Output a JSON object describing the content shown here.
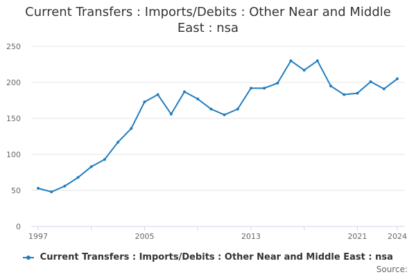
{
  "title_line1": "Current Transfers : Imports/Debits : Other Near and Middle",
  "title_line2": "East : nsa",
  "source_label": "Source:",
  "colors": {
    "series": "#1f7cbf",
    "grid": "#e6e6e6",
    "axis": "#ccd6eb",
    "text": "#333333",
    "tick_text": "#666666"
  },
  "chart_data": {
    "type": "line",
    "title": "Current Transfers : Imports/Debits : Other Near and Middle East : nsa",
    "xlabel": "",
    "ylabel": "",
    "xlim": [
      1997,
      2024
    ],
    "ylim": [
      0,
      250
    ],
    "y_ticks": [
      0,
      50,
      100,
      150,
      200,
      250
    ],
    "x_ticks": [
      1997,
      2005,
      2013,
      2021,
      2024
    ],
    "grid": true,
    "legend": "bottom",
    "series": [
      {
        "name": "Current Transfers : Imports/Debits : Other Near and Middle East : nsa",
        "x": [
          1997,
          1998,
          1999,
          2000,
          2001,
          2002,
          2003,
          2004,
          2005,
          2006,
          2007,
          2008,
          2009,
          2010,
          2011,
          2012,
          2013,
          2014,
          2015,
          2016,
          2017,
          2018,
          2019,
          2020,
          2021,
          2022,
          2023,
          2024
        ],
        "values": [
          53,
          48,
          56,
          68,
          83,
          93,
          117,
          136,
          173,
          183,
          156,
          187,
          177,
          163,
          155,
          163,
          192,
          192,
          199,
          230,
          217,
          230,
          195,
          183,
          185,
          201,
          191,
          205
        ]
      }
    ]
  }
}
